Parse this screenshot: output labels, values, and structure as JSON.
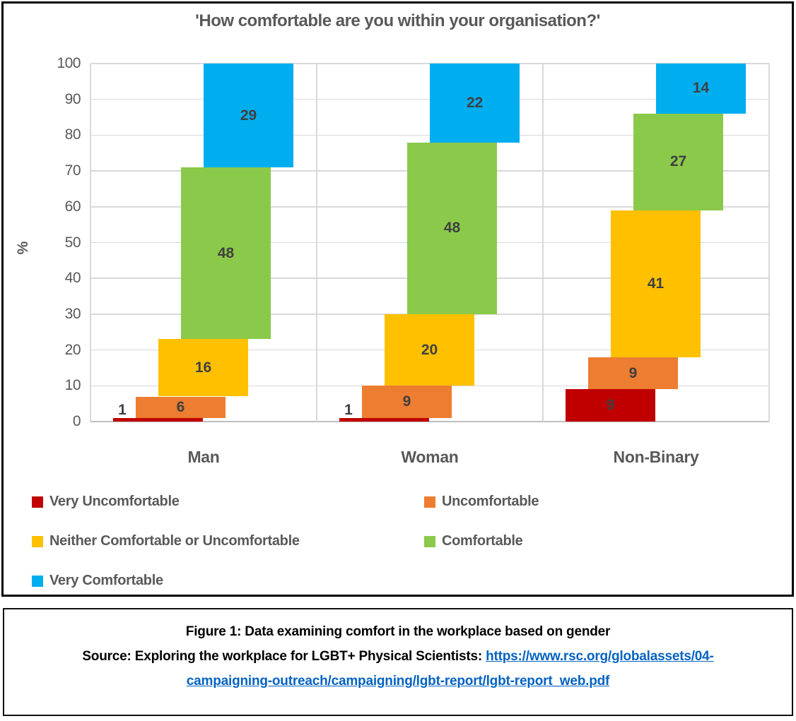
{
  "chart_data": {
    "type": "bar",
    "stacked": true,
    "title": "'How comfortable are you within your organisation?'",
    "xlabel": "",
    "ylabel": "%",
    "ylim": [
      0,
      100
    ],
    "yticks": [
      0,
      10,
      20,
      30,
      40,
      50,
      60,
      70,
      80,
      90,
      100
    ],
    "grid": true,
    "legend_position": "bottom",
    "categories": [
      "Man",
      "Woman",
      "Non-Binary"
    ],
    "series": [
      {
        "name": "Very Uncomfortable",
        "color": "#C00000",
        "values": [
          1,
          1,
          9
        ]
      },
      {
        "name": "Uncomfortable",
        "color": "#ED7D31",
        "values": [
          6,
          9,
          9
        ]
      },
      {
        "name": "Neither Comfortable or Uncomfortable",
        "color": "#FFC000",
        "values": [
          16,
          20,
          41
        ]
      },
      {
        "name": "Comfortable",
        "color": "#8BC94A",
        "values": [
          48,
          48,
          27
        ]
      },
      {
        "name": "Very Comfortable",
        "color": "#00AEEF",
        "values": [
          29,
          22,
          14
        ]
      }
    ]
  },
  "caption": {
    "line1": "Figure 1: Data examining comfort in the workplace based on gender",
    "source_prefix": "Source: Exploring the workplace for LGBT+ Physical Scientists: ",
    "link_line1": "https://www.rsc.org/globalassets/04-",
    "link_line2": "campaigning-outreach/campaigning/lgbt-report/lgbt-report_web.pdf"
  }
}
